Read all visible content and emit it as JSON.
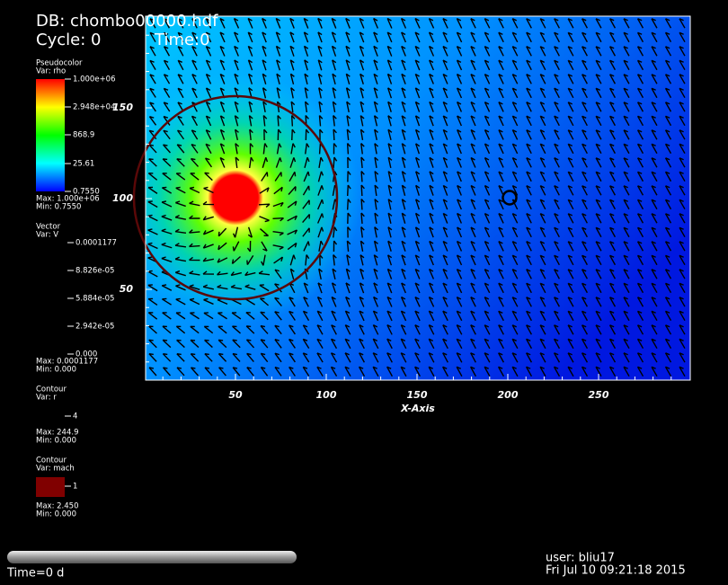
{
  "header": {
    "db": "DB: chombo00000.hdf",
    "cycle": "Cycle: 0",
    "time": "Time:0"
  },
  "legend": {
    "pseudocolor": {
      "title": "Pseudocolor",
      "var": "Var: rho",
      "labels": [
        "1.000e+06",
        "2.948e+04",
        "868.9",
        "25.61",
        "0.7550"
      ],
      "max": "Max: 1.000e+06",
      "min": "Min: 0.7550"
    },
    "vector": {
      "title": "Vector",
      "var": "Var: V",
      "labels": [
        "0.0001177",
        "8.826e-05",
        "5.884e-05",
        "2.942e-05",
        "0.000"
      ],
      "max": "Max: 0.0001177",
      "min": "Min: 0.000"
    },
    "contour_r": {
      "title": "Contour",
      "var": "Var: r",
      "labels": [
        "4"
      ],
      "max": "Max: 244.9",
      "min": "Min: 0.000"
    },
    "contour_mach": {
      "title": "Contour",
      "var": "Var: mach",
      "labels": [
        "1"
      ],
      "max": "Max: 2.450",
      "min": "Min: 0.000"
    }
  },
  "plot": {
    "x_axis_title": "X-Axis",
    "xticks": [
      "50",
      "100",
      "150",
      "200",
      "250"
    ],
    "yticks": [
      "150",
      "100",
      "50"
    ]
  },
  "footer": {
    "time": "Time=0 d",
    "user": "user: bliu17",
    "date": "Fri Jul 10 09:21:18 2015"
  }
}
